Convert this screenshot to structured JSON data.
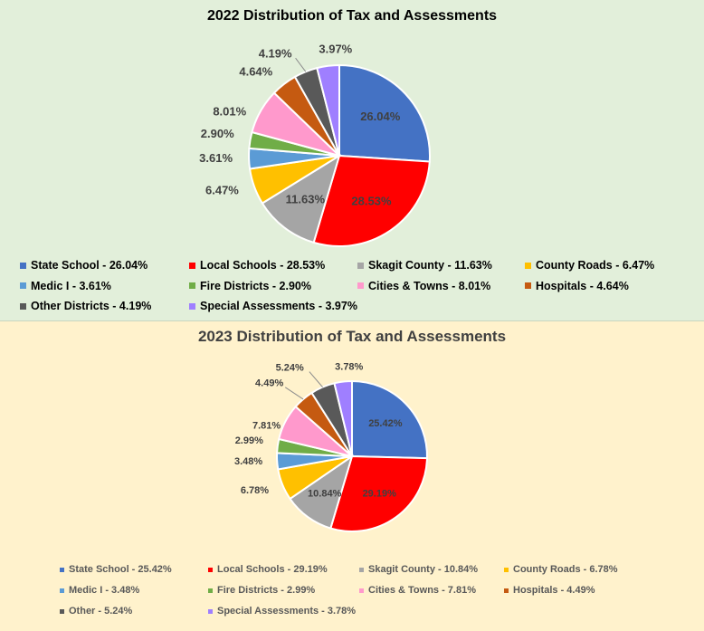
{
  "chart_data": [
    {
      "type": "pie",
      "title": "2022 Distribution of Tax and Assessments",
      "labels": [
        "State School",
        "Local Schools",
        "Skagit County",
        "County Roads",
        "Medic I",
        "Fire Districts",
        "Cities & Towns",
        "Hospitals",
        "Other Districts",
        "Special Assessments"
      ],
      "values": [
        26.04,
        28.53,
        11.63,
        6.47,
        3.61,
        2.9,
        8.01,
        4.64,
        4.19,
        3.97
      ],
      "data_labels": [
        "26.04%",
        "28.53%",
        "11.63%",
        "6.47%",
        "3.61%",
        "2.90%",
        "8.01%",
        "4.64%",
        "4.19%",
        "3.97%"
      ],
      "legend": [
        "State School - 26.04%",
        "Local Schools - 28.53%",
        "Skagit County - 11.63%",
        "County Roads - 6.47%",
        "Medic I - 3.61%",
        "Fire Districts - 2.90%",
        "Cities & Towns - 8.01%",
        "Hospitals - 4.64%",
        "Other Districts - 4.19%",
        "Special Assessments - 3.97%"
      ],
      "colors": [
        "#4472c4",
        "#ff0000",
        "#a5a5a5",
        "#ffc000",
        "#5b9bd5",
        "#70ad47",
        "#ff99cc",
        "#c55a11",
        "#595959",
        "#9f7fff"
      ],
      "legend_position": "bottom",
      "background": "#e2efda"
    },
    {
      "type": "pie",
      "title": "2023 Distribution of Tax and Assessments",
      "labels": [
        "State School",
        "Local Schools",
        "Skagit County",
        "County Roads",
        "Medic I",
        "Fire Districts",
        "Cities & Towns",
        "Hospitals",
        "Other",
        "Special Assessments"
      ],
      "values": [
        25.42,
        29.19,
        10.84,
        6.78,
        3.48,
        2.99,
        7.81,
        4.49,
        5.24,
        3.78
      ],
      "data_labels": [
        "25.42%",
        "29.19%",
        "10.84%",
        "6.78%",
        "3.48%",
        "2.99%",
        "7.81%",
        "4.49%",
        "5.24%",
        "3.78%"
      ],
      "legend": [
        "State School - 25.42%",
        "Local Schools - 29.19%",
        "Skagit County - 10.84%",
        "County Roads - 6.78%",
        "Medic I - 3.48%",
        "Fire Districts - 2.99%",
        "Cities & Towns - 7.81%",
        "Hospitals - 4.49%",
        "Other - 5.24%",
        "Special Assessments - 3.78%"
      ],
      "colors": [
        "#4472c4",
        "#ff0000",
        "#a5a5a5",
        "#ffc000",
        "#5b9bd5",
        "#70ad47",
        "#ff99cc",
        "#c55a11",
        "#595959",
        "#9f7fff"
      ],
      "legend_position": "bottom",
      "background": "#fff2cc"
    }
  ]
}
